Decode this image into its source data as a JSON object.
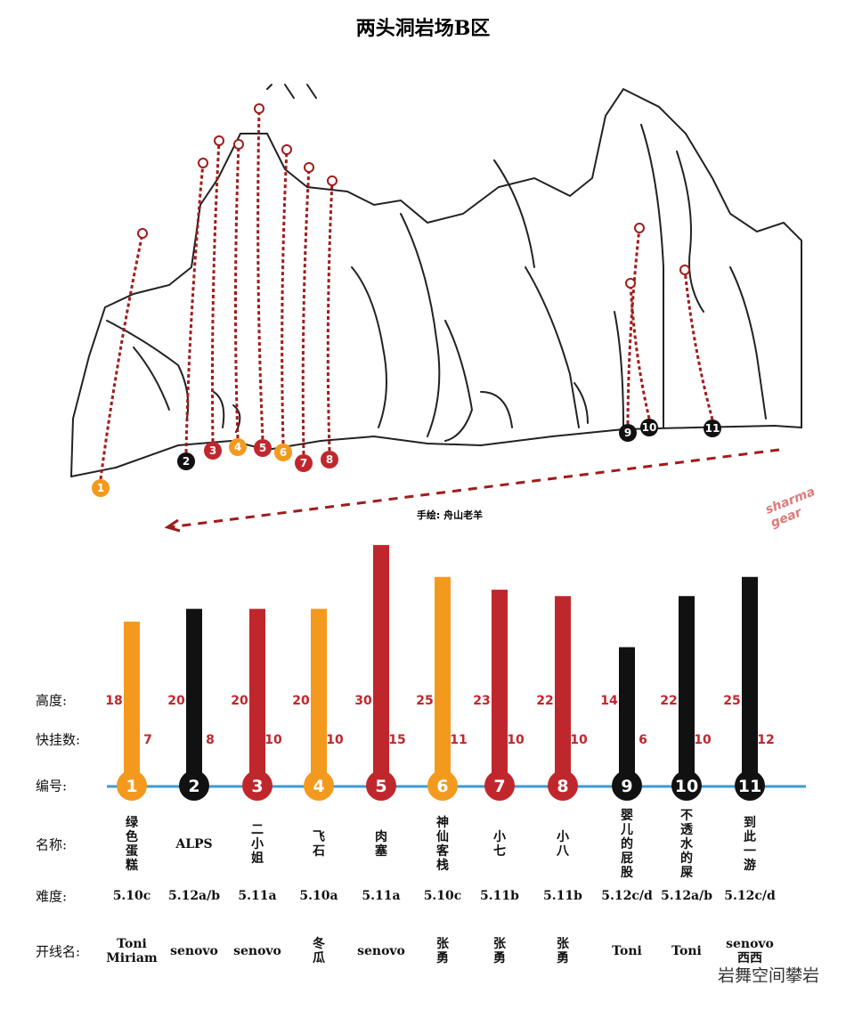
{
  "title": "两头洞岩场B区",
  "credit": "手绘: 舟山老羊",
  "watermark": "sharma gear",
  "footer": "岩舞空间攀岩",
  "row_labels": {
    "height": "高度:",
    "draws": "快挂数:",
    "number": "编号:",
    "name": "名称:",
    "grade": "难度:",
    "setter": "开线名:"
  },
  "routes": [
    {
      "number": 1,
      "height": 18,
      "draws": 7,
      "name": "绿色蛋糕",
      "grade": "5.10c",
      "setter": "Toni Miriam",
      "color": "#f39a1e"
    },
    {
      "number": 2,
      "height": 20,
      "draws": 8,
      "name": "ALPS",
      "grade": "5.12a/b",
      "setter": "senovo",
      "color": "#111111"
    },
    {
      "number": 3,
      "height": 20,
      "draws": 10,
      "name": "二小姐",
      "grade": "5.11a",
      "setter": "senovo",
      "color": "#c0272d"
    },
    {
      "number": 4,
      "height": 20,
      "draws": 10,
      "name": "飞石",
      "grade": "5.10a",
      "setter": "冬瓜",
      "color": "#f39a1e"
    },
    {
      "number": 5,
      "height": 30,
      "draws": 15,
      "name": "肉塞",
      "grade": "5.11a",
      "setter": "senovo",
      "color": "#c0272d"
    },
    {
      "number": 6,
      "height": 25,
      "draws": 11,
      "name": "神仙客栈",
      "grade": "5.10c",
      "setter": "张勇",
      "color": "#f39a1e"
    },
    {
      "number": 7,
      "height": 23,
      "draws": 10,
      "name": "小七",
      "grade": "5.11b",
      "setter": "张勇",
      "color": "#c0272d"
    },
    {
      "number": 8,
      "height": 22,
      "draws": 10,
      "name": "小八",
      "grade": "5.11b",
      "setter": "张勇",
      "color": "#c0272d"
    },
    {
      "number": 9,
      "height": 14,
      "draws": 6,
      "name": "婴儿的屁股",
      "grade": "5.12c/d",
      "setter": "Toni",
      "color": "#111111"
    },
    {
      "number": 10,
      "height": 22,
      "draws": 10,
      "name": "不透水的屎",
      "grade": "5.12a/b",
      "setter": "Toni",
      "color": "#111111"
    },
    {
      "number": 11,
      "height": 25,
      "draws": 12,
      "name": "到此一游",
      "grade": "5.12c/d",
      "setter": "senovo 西西",
      "color": "#111111"
    }
  ]
}
